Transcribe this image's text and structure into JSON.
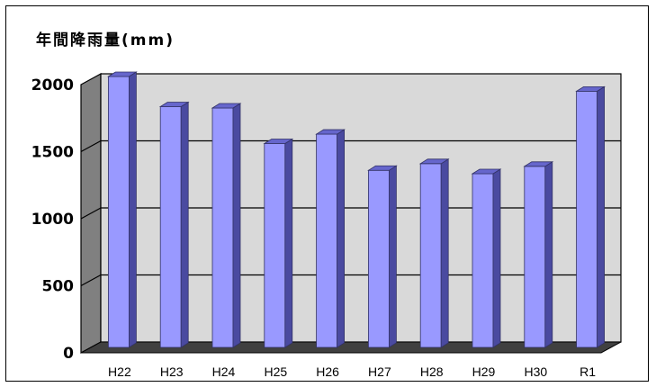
{
  "chart_data": {
    "type": "bar",
    "title": "年間降雨量(mm)",
    "categories": [
      "H22",
      "H23",
      "H24",
      "H25",
      "H26",
      "H27",
      "H28",
      "H29",
      "H30",
      "R1"
    ],
    "values": [
      1980,
      1755,
      1745,
      1480,
      1550,
      1280,
      1330,
      1255,
      1310,
      1870
    ],
    "ylim": [
      0,
      2000
    ],
    "yticks": [
      "0",
      "500",
      "1000",
      "1500",
      "2000"
    ],
    "grid": true,
    "legend": "none",
    "colors": {
      "bar_front": "#9999ff",
      "bar_side": "#4a4aa0",
      "bar_top": "#6666cc",
      "wall": "#d9d9d9",
      "side_wall": "#808080",
      "floor": "#404040"
    }
  }
}
